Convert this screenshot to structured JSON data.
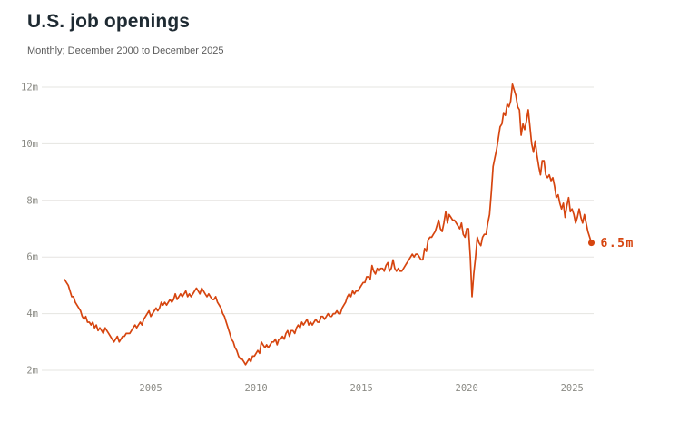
{
  "header": {
    "title": "U.S. job openings",
    "subtitle": "Monthly; December 2000 to December 2025"
  },
  "chart_data": {
    "type": "line",
    "title": "U.S. job openings",
    "subtitle": "Monthly; December 2000 to December 2025",
    "series_name": "Job openings",
    "unit": "millions",
    "x_start_label": "December 2000",
    "x_end_label": "December 2025",
    "x_ticks": [
      2005,
      2010,
      2015,
      2020,
      2025
    ],
    "y_ticks": [
      2,
      4,
      6,
      8,
      10,
      12
    ],
    "y_tick_labels": [
      "2m",
      "4m",
      "6m",
      "8m",
      "10m",
      "12m"
    ],
    "ylim": [
      2,
      12
    ],
    "grid": "horizontal-only",
    "end_label": "6.5m",
    "end_value": 6.5,
    "line_color": "#d6450f",
    "grid_color": "#e5e4e1",
    "tick_color": "#8b8b85",
    "title_color": "#1e2a32",
    "subtitle_color": "#5c5c5c",
    "values": [
      5.2,
      5.1,
      5.0,
      4.8,
      4.6,
      4.6,
      4.4,
      4.3,
      4.2,
      4.1,
      3.9,
      3.8,
      3.9,
      3.7,
      3.7,
      3.6,
      3.7,
      3.5,
      3.6,
      3.4,
      3.5,
      3.4,
      3.3,
      3.5,
      3.4,
      3.3,
      3.2,
      3.1,
      3.0,
      3.1,
      3.2,
      3.0,
      3.1,
      3.2,
      3.2,
      3.3,
      3.3,
      3.3,
      3.4,
      3.5,
      3.6,
      3.5,
      3.6,
      3.7,
      3.6,
      3.8,
      3.9,
      4.0,
      4.1,
      3.9,
      4.0,
      4.1,
      4.2,
      4.1,
      4.2,
      4.4,
      4.3,
      4.4,
      4.3,
      4.4,
      4.5,
      4.4,
      4.5,
      4.7,
      4.5,
      4.6,
      4.7,
      4.6,
      4.7,
      4.8,
      4.6,
      4.7,
      4.6,
      4.7,
      4.8,
      4.9,
      4.8,
      4.7,
      4.9,
      4.8,
      4.7,
      4.6,
      4.7,
      4.6,
      4.5,
      4.5,
      4.6,
      4.4,
      4.3,
      4.2,
      4.0,
      3.9,
      3.7,
      3.5,
      3.3,
      3.1,
      3.0,
      2.8,
      2.7,
      2.5,
      2.4,
      2.4,
      2.3,
      2.2,
      2.3,
      2.4,
      2.3,
      2.5,
      2.5,
      2.6,
      2.7,
      2.6,
      3.0,
      2.9,
      2.8,
      2.9,
      2.8,
      2.9,
      3.0,
      3.0,
      3.1,
      2.9,
      3.1,
      3.1,
      3.2,
      3.1,
      3.3,
      3.4,
      3.2,
      3.4,
      3.4,
      3.3,
      3.5,
      3.6,
      3.5,
      3.7,
      3.6,
      3.7,
      3.8,
      3.6,
      3.7,
      3.6,
      3.7,
      3.8,
      3.7,
      3.7,
      3.9,
      3.9,
      3.8,
      3.9,
      4.0,
      3.9,
      3.9,
      4.0,
      4.0,
      4.1,
      4.0,
      4.0,
      4.2,
      4.3,
      4.4,
      4.6,
      4.7,
      4.6,
      4.8,
      4.7,
      4.8,
      4.8,
      4.9,
      5.0,
      5.1,
      5.1,
      5.3,
      5.3,
      5.2,
      5.7,
      5.5,
      5.4,
      5.6,
      5.5,
      5.6,
      5.6,
      5.5,
      5.7,
      5.8,
      5.5,
      5.6,
      5.9,
      5.6,
      5.5,
      5.6,
      5.5,
      5.5,
      5.6,
      5.7,
      5.8,
      5.9,
      6.0,
      6.1,
      6.0,
      6.1,
      6.1,
      6.0,
      5.9,
      5.9,
      6.3,
      6.2,
      6.6,
      6.7,
      6.7,
      6.8,
      6.9,
      7.1,
      7.3,
      7.0,
      6.9,
      7.2,
      7.6,
      7.2,
      7.5,
      7.4,
      7.3,
      7.3,
      7.2,
      7.1,
      7.0,
      7.2,
      6.8,
      6.7,
      7.0,
      7.0,
      6.0,
      4.6,
      5.4,
      6.0,
      6.7,
      6.5,
      6.4,
      6.7,
      6.8,
      6.8,
      7.2,
      7.5,
      8.3,
      9.2,
      9.5,
      9.8,
      10.2,
      10.6,
      10.7,
      11.1,
      11.0,
      11.4,
      11.3,
      11.5,
      12.1,
      11.9,
      11.7,
      11.3,
      11.2,
      10.3,
      10.7,
      10.5,
      10.8,
      11.2,
      10.6,
      10.0,
      9.7,
      10.1,
      9.6,
      9.2,
      8.9,
      9.4,
      9.4,
      8.9,
      8.8,
      8.9,
      8.7,
      8.8,
      8.5,
      8.1,
      8.2,
      7.9,
      7.7,
      7.9,
      7.4,
      7.8,
      8.1,
      7.6,
      7.7,
      7.5,
      7.2,
      7.4,
      7.7,
      7.4,
      7.2,
      7.5,
      7.2,
      6.9,
      6.7,
      6.5
    ]
  }
}
